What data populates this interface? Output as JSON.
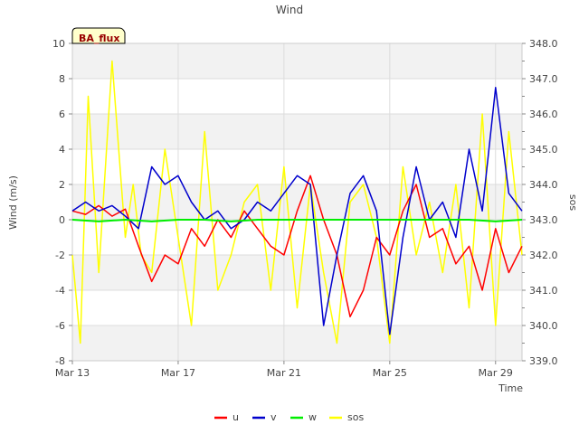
{
  "chart_data": {
    "type": "line",
    "title": "Wind",
    "badge": "BA_flux",
    "xlabel": "Time",
    "ylabel": "Wind (m/s)",
    "y2label": "sos",
    "ylim": [
      -8,
      10
    ],
    "y2lim": [
      339.0,
      348.0
    ],
    "xlim": [
      0,
      17
    ],
    "x_ticks": [
      {
        "value": 0,
        "label": "Mar 13"
      },
      {
        "value": 4,
        "label": "Mar 17"
      },
      {
        "value": 8,
        "label": "Mar 21"
      },
      {
        "value": 12,
        "label": "Mar 25"
      },
      {
        "value": 16,
        "label": "Mar 29"
      }
    ],
    "y_ticks": [
      {
        "value": -8,
        "label": "-8"
      },
      {
        "value": -6,
        "label": "-6"
      },
      {
        "value": -4,
        "label": "-4"
      },
      {
        "value": -2,
        "label": "-2"
      },
      {
        "value": 0,
        "label": "0"
      },
      {
        "value": 2,
        "label": "2"
      },
      {
        "value": 4,
        "label": "4"
      },
      {
        "value": 6,
        "label": "6"
      },
      {
        "value": 8,
        "label": "8"
      },
      {
        "value": 10,
        "label": "10"
      }
    ],
    "y2_ticks": [
      {
        "value": 339.0,
        "label": "339.0"
      },
      {
        "value": 340.0,
        "label": "340.0"
      },
      {
        "value": 341.0,
        "label": "341.0"
      },
      {
        "value": 342.0,
        "label": "342.0"
      },
      {
        "value": 343.0,
        "label": "343.0"
      },
      {
        "value": 344.0,
        "label": "344.0"
      },
      {
        "value": 345.0,
        "label": "345.0"
      },
      {
        "value": 346.0,
        "label": "346.0"
      },
      {
        "value": 347.0,
        "label": "347.0"
      },
      {
        "value": 348.0,
        "label": "348.0"
      }
    ],
    "grid": true,
    "legend_position": "bottom",
    "series": [
      {
        "name": "u",
        "color": "#ff0000",
        "axis": "left",
        "x": [
          0,
          0.5,
          1,
          1.5,
          2,
          2.5,
          3,
          3.5,
          4,
          4.5,
          5,
          5.5,
          6,
          6.5,
          7,
          7.5,
          8,
          8.5,
          9,
          9.5,
          10,
          10.5,
          11,
          11.5,
          12,
          12.5,
          13,
          13.5,
          14,
          14.5,
          15,
          15.5,
          16,
          16.5,
          17
        ],
        "values": [
          0.5,
          0.3,
          0.8,
          0.2,
          0.6,
          -1.5,
          -3.5,
          -2.0,
          -2.5,
          -0.5,
          -1.5,
          0.0,
          -1.0,
          0.5,
          -0.5,
          -1.5,
          -2.0,
          0.5,
          2.5,
          0.0,
          -2.0,
          -5.5,
          -4.0,
          -1.0,
          -2.0,
          0.5,
          2.0,
          -1.0,
          -0.5,
          -2.5,
          -1.5,
          -4.0,
          -0.5,
          -3.0,
          -1.5
        ]
      },
      {
        "name": "v",
        "color": "#0000cc",
        "axis": "left",
        "x": [
          0,
          0.5,
          1,
          1.5,
          2,
          2.5,
          3,
          3.5,
          4,
          4.5,
          5,
          5.5,
          6,
          6.5,
          7,
          7.5,
          8,
          8.5,
          9,
          9.5,
          10,
          10.5,
          11,
          11.5,
          12,
          12.5,
          13,
          13.5,
          14,
          14.5,
          15,
          15.5,
          16,
          16.5,
          17
        ],
        "values": [
          0.5,
          1.0,
          0.5,
          0.8,
          0.2,
          -0.5,
          3.0,
          2.0,
          2.5,
          1.0,
          0.0,
          0.5,
          -0.5,
          0.0,
          1.0,
          0.5,
          1.5,
          2.5,
          2.0,
          -6.0,
          -2.0,
          1.5,
          2.5,
          0.5,
          -6.5,
          -1.0,
          3.0,
          0.0,
          1.0,
          -1.0,
          4.0,
          0.5,
          7.5,
          1.5,
          0.5
        ]
      },
      {
        "name": "w",
        "color": "#00ee00",
        "axis": "left",
        "x": [
          0,
          1,
          2,
          3,
          4,
          5,
          6,
          7,
          8,
          9,
          10,
          11,
          12,
          13,
          14,
          15,
          16,
          17
        ],
        "values": [
          0.0,
          -0.1,
          0.0,
          -0.1,
          0.0,
          0.0,
          -0.1,
          0.0,
          0.0,
          0.0,
          0.0,
          0.0,
          0.0,
          0.0,
          0.0,
          0.0,
          -0.1,
          0.0
        ]
      },
      {
        "name": "sos",
        "color": "#ffff00",
        "axis": "right",
        "x": [
          0,
          0.3,
          0.6,
          1,
          1.5,
          2,
          2.3,
          2.6,
          3,
          3.5,
          4,
          4.5,
          5,
          5.5,
          6,
          6.5,
          7,
          7.5,
          8,
          8.5,
          9,
          9.5,
          10,
          10.5,
          11,
          11.5,
          12,
          12.5,
          13,
          13.5,
          14,
          14.5,
          15,
          15.5,
          16,
          16.5,
          17
        ],
        "values": [
          342.0,
          339.5,
          346.5,
          341.5,
          347.5,
          342.5,
          344.0,
          342.0,
          341.5,
          345.0,
          342.5,
          340.0,
          345.5,
          341.0,
          342.0,
          343.5,
          344.0,
          341.0,
          344.5,
          340.5,
          344.0,
          341.5,
          339.5,
          343.5,
          344.0,
          342.5,
          339.5,
          344.5,
          342.0,
          343.5,
          341.5,
          344.0,
          340.5,
          346.0,
          340.0,
          345.5,
          342.0
        ]
      }
    ]
  }
}
